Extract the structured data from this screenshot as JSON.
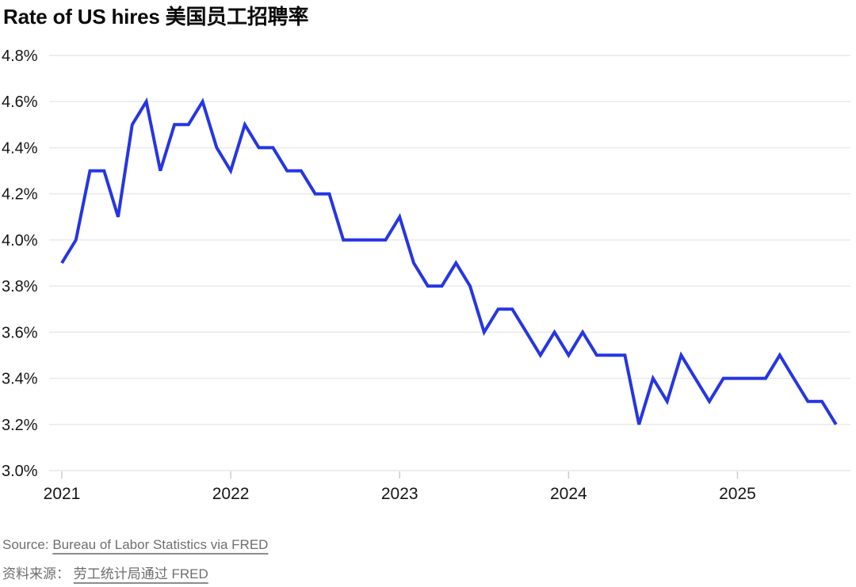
{
  "page": {
    "title": "Rate of US hires 美国员工招聘率"
  },
  "source": {
    "prefix_en": "Source: ",
    "link_en": "Bureau of Labor Statistics via FRED",
    "prefix_zh": "资料来源： ",
    "link_zh": "劳工统计局通过 FRED"
  },
  "colors": {
    "line": "#2636e2",
    "grid": "#e9e9e9",
    "tick": "#cccccc",
    "axis_text": "#151515",
    "source_text": "#6e6e6e"
  },
  "chart_data": {
    "type": "line",
    "title": "Rate of US hires 美国员工招聘率",
    "x_start": "2021-01",
    "x_frequency": "monthly",
    "series": [
      {
        "name": "Rate of US hires (%)",
        "values": [
          3.9,
          4.0,
          4.3,
          4.3,
          4.1,
          4.5,
          4.6,
          4.3,
          4.5,
          4.5,
          4.6,
          4.4,
          4.3,
          4.5,
          4.4,
          4.4,
          4.3,
          4.3,
          4.2,
          4.2,
          4.0,
          4.0,
          4.0,
          4.0,
          4.1,
          3.9,
          3.8,
          3.8,
          3.9,
          3.8,
          3.6,
          3.7,
          3.7,
          3.6,
          3.5,
          3.6,
          3.5,
          3.6,
          3.5,
          3.5,
          3.5,
          3.2,
          3.4,
          3.3,
          3.5,
          3.4,
          3.3,
          3.4,
          3.4,
          3.4,
          3.4,
          3.5,
          3.4,
          3.3,
          3.3,
          3.2
        ]
      }
    ],
    "ylim": [
      3.0,
      4.8
    ],
    "yticks": [
      3.0,
      3.2,
      3.4,
      3.6,
      3.8,
      4.0,
      4.2,
      4.4,
      4.6,
      4.8
    ],
    "ytick_labels": [
      "3.0%",
      "3.2%",
      "3.4%",
      "3.6%",
      "3.8%",
      "4.0%",
      "4.2%",
      "4.4%",
      "4.6%",
      "4.8%"
    ],
    "xticks": [
      {
        "label": "2021",
        "month_index": 0
      },
      {
        "label": "2022",
        "month_index": 12
      },
      {
        "label": "2023",
        "month_index": 24
      },
      {
        "label": "2024",
        "month_index": 36
      },
      {
        "label": "2025",
        "month_index": 48
      }
    ],
    "grid": "horizontal-only",
    "legend": "none",
    "xlabel": "",
    "ylabel": ""
  }
}
